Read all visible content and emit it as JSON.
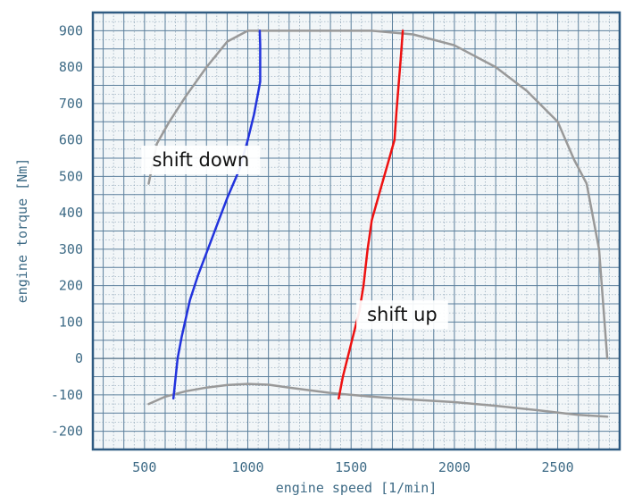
{
  "chart_data": {
    "type": "line",
    "title": "",
    "xlabel": "engine speed [1/min]",
    "ylabel": "engine torque [Nm]",
    "xlim": [
      250,
      2800
    ],
    "ylim": [
      -250,
      950
    ],
    "x_ticks": [
      500,
      1000,
      1500,
      2000,
      2500
    ],
    "y_ticks": [
      -200,
      -100,
      0,
      100,
      200,
      300,
      400,
      500,
      600,
      700,
      800,
      900
    ],
    "grid": true,
    "legend": "none",
    "series": [
      {
        "color": "#999999",
        "x": [
          520,
          560,
          620,
          700,
          800,
          900,
          1000,
          1060,
          1200,
          1400,
          1600,
          1800,
          2000,
          2200,
          2350,
          2500,
          2580,
          2640,
          2700,
          2740
        ],
        "y": [
          480,
          590,
          650,
          720,
          800,
          870,
          900,
          900,
          900,
          900,
          900,
          890,
          860,
          800,
          735,
          650,
          545,
          480,
          300,
          0
        ]
      },
      {
        "color": "#999999",
        "x": [
          520,
          600,
          700,
          800,
          900,
          1000,
          1100,
          1200,
          1400,
          1600,
          1800,
          2000,
          2200,
          2400,
          2600,
          2740
        ],
        "y": [
          -125,
          -105,
          -90,
          -80,
          -73,
          -70,
          -72,
          -80,
          -95,
          -105,
          -113,
          -120,
          -130,
          -142,
          -155,
          -160
        ]
      },
      {
        "color": "#2233dd",
        "x": [
          640,
          660,
          680,
          700,
          720,
          760,
          800,
          860,
          900,
          960,
          1000,
          1030,
          1050,
          1060,
          1060,
          1058
        ],
        "y": [
          -110,
          0,
          60,
          110,
          160,
          230,
          290,
          380,
          440,
          520,
          600,
          670,
          730,
          760,
          860,
          900
        ]
      },
      {
        "color": "#ee1111",
        "x": [
          1440,
          1460,
          1500,
          1540,
          1560,
          1580,
          1600,
          1640,
          1680,
          1710,
          1720,
          1730,
          1740,
          1750
        ],
        "y": [
          -110,
          -50,
          40,
          130,
          200,
          300,
          380,
          460,
          540,
          600,
          680,
          750,
          820,
          900
        ]
      }
    ],
    "annotations": [
      {
        "text": "shift down",
        "x": 520,
        "y": 545
      },
      {
        "text": "shift up",
        "x": 1560,
        "y": 120
      }
    ]
  }
}
